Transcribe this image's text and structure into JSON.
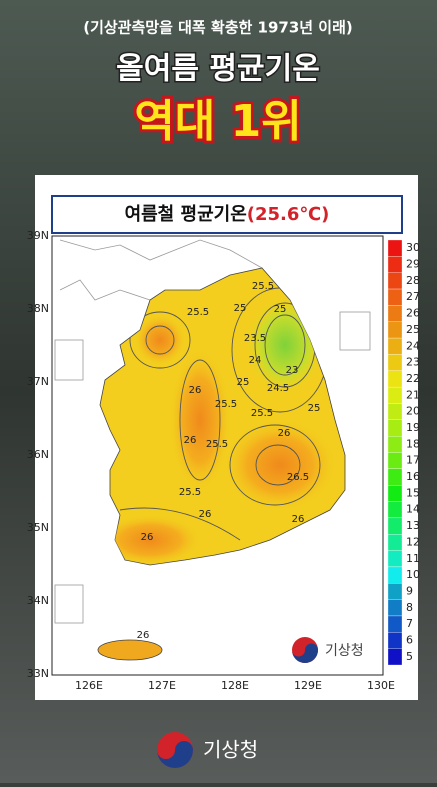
{
  "header": {
    "subtitle": "(기상관측망을 대폭 확충한 1973년 이래)",
    "headline": "올여름 평균기온",
    "highlight": "역대 1위"
  },
  "map": {
    "title": "여름철 평균기온",
    "title_value": "(25.6℃)",
    "lat_labels": [
      "39N",
      "38N",
      "37N",
      "36N",
      "35N",
      "34N",
      "33N"
    ],
    "lon_labels": [
      "126E",
      "127E",
      "128E",
      "129E",
      "130E"
    ],
    "scale_labels": [
      30,
      29,
      28,
      27,
      26,
      25,
      24,
      23,
      22,
      21,
      20,
      19,
      18,
      17,
      16,
      15,
      14,
      13,
      12,
      11,
      10,
      9,
      8,
      7,
      6,
      5
    ],
    "contour_labels": [
      25.5,
      25.5,
      25,
      25,
      23.5,
      24,
      23,
      25,
      24.5,
      26,
      25.5,
      25,
      25.5,
      26,
      26,
      25.5,
      26.5,
      25.5,
      26,
      26,
      26,
      26
    ],
    "logo_text": "기상청"
  },
  "footer": {
    "logo_text": "기상청"
  }
}
